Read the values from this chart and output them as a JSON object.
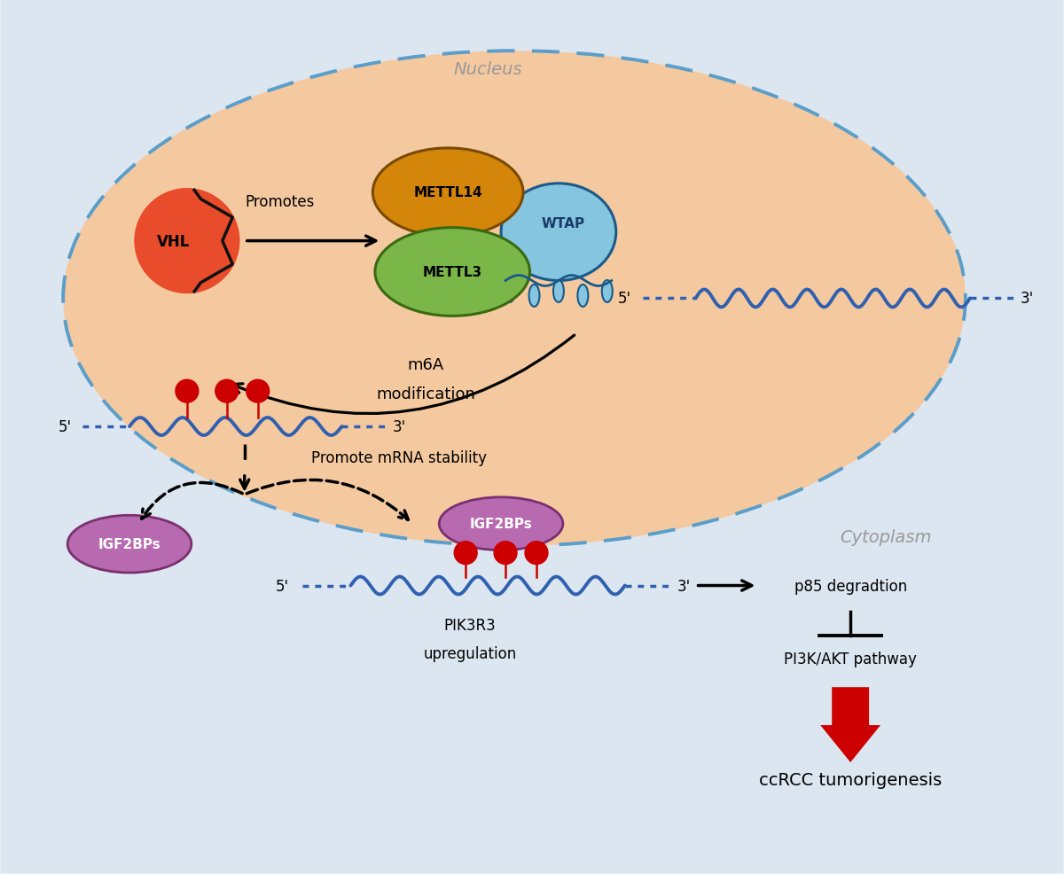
{
  "bg_color": "#e8edf3",
  "cell_bg_color": "#dce6f0",
  "nucleus_color": "#f5c9a0",
  "nucleus_border": "#5a9ec9",
  "cell_border_color": "#aaaaaa",
  "vhl_color": "#e84c2b",
  "vhl_edge": "#111111",
  "mettl14_color": "#d4860a",
  "mettl14_edge": "#7a4a00",
  "mettl3_color": "#7ab648",
  "mettl3_edge": "#3a6a10",
  "wtap_color": "#85c5e0",
  "wtap_edge": "#1a5a8a",
  "igf2bp_color": "#b86ab0",
  "igf2bp_edge": "#7a3070",
  "mrna_color": "#3060b0",
  "red_dot_color": "#cc0000",
  "black": "#000000",
  "red_arrow_color": "#cc0000",
  "text_gray": "#999999",
  "label_nucleus": "Nucleus",
  "label_cytoplasm": "Cytoplasm",
  "label_vhl": "VHL",
  "label_promotes": "Promotes",
  "label_mettl14": "METTL14",
  "label_mettl3": "METTL3",
  "label_wtap": "WTAP",
  "label_m6a": "m6A",
  "label_modification": "modification",
  "label_promote_mrna": "Promote mRNA stability",
  "label_igf2bp": "IGF2BPs",
  "label_pikr3": "PIK3R3",
  "label_upregulation": "upregulation",
  "label_p85": "p85 degradtion",
  "label_pi3k": "PI3K/AKT pathway",
  "label_ccrcc": "ccRCC tumorigenesis"
}
